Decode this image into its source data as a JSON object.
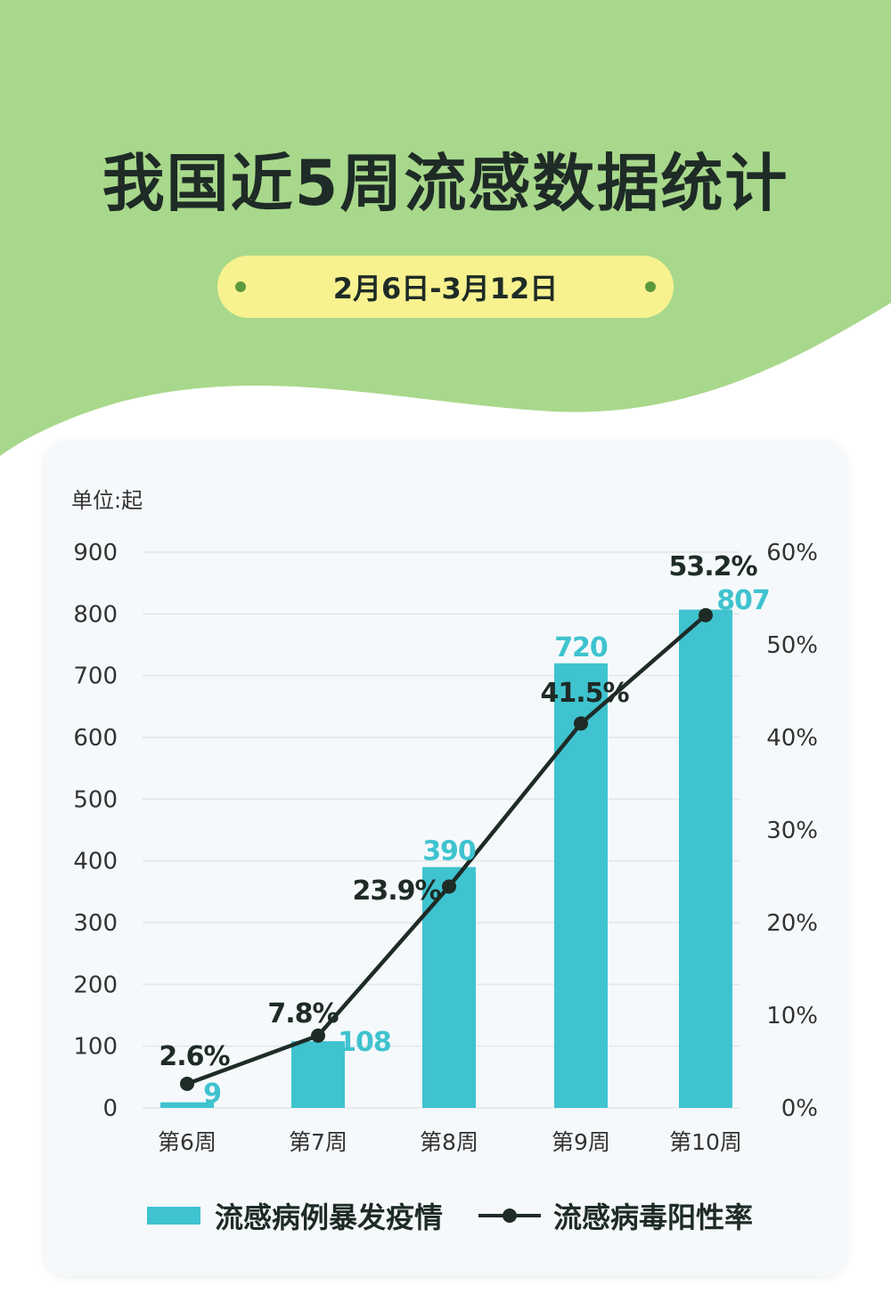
{
  "title": "我国近5周流感数据统计",
  "date_range": "2月6日-3月12日",
  "unit_label": "单位:起",
  "colors": {
    "background_green": "#a8d88b",
    "pill_yellow": "#f7f28f",
    "bar": "#3fc3cf",
    "line": "#1e2b26"
  },
  "legend": {
    "bar_label": "流感病例暴发疫情",
    "line_label": "流感病毒阳性率"
  },
  "chart_data": {
    "type": "bar",
    "categories": [
      "第6周",
      "第7周",
      "第8周",
      "第9周",
      "第10周"
    ],
    "series": [
      {
        "name": "流感病例暴发疫情",
        "type": "bar",
        "axis": "left",
        "values": [
          9,
          108,
          390,
          720,
          807
        ],
        "labels": [
          "9",
          "108",
          "390",
          "720",
          "807"
        ]
      },
      {
        "name": "流感病毒阳性率",
        "type": "line",
        "axis": "right",
        "values": [
          2.6,
          7.8,
          23.9,
          41.5,
          53.2
        ],
        "labels": [
          "2.6%",
          "7.8%",
          "23.9%",
          "41.5%",
          "53.2%"
        ]
      }
    ],
    "y_left": {
      "min": 0,
      "max": 900,
      "ticks": [
        "0",
        "100",
        "200",
        "300",
        "400",
        "500",
        "600",
        "700",
        "800",
        "900"
      ]
    },
    "y_right": {
      "min": 0,
      "max": 60,
      "ticks": [
        "0%",
        "10%",
        "20%",
        "30%",
        "40%",
        "50%",
        "60%"
      ]
    },
    "grid": true
  }
}
